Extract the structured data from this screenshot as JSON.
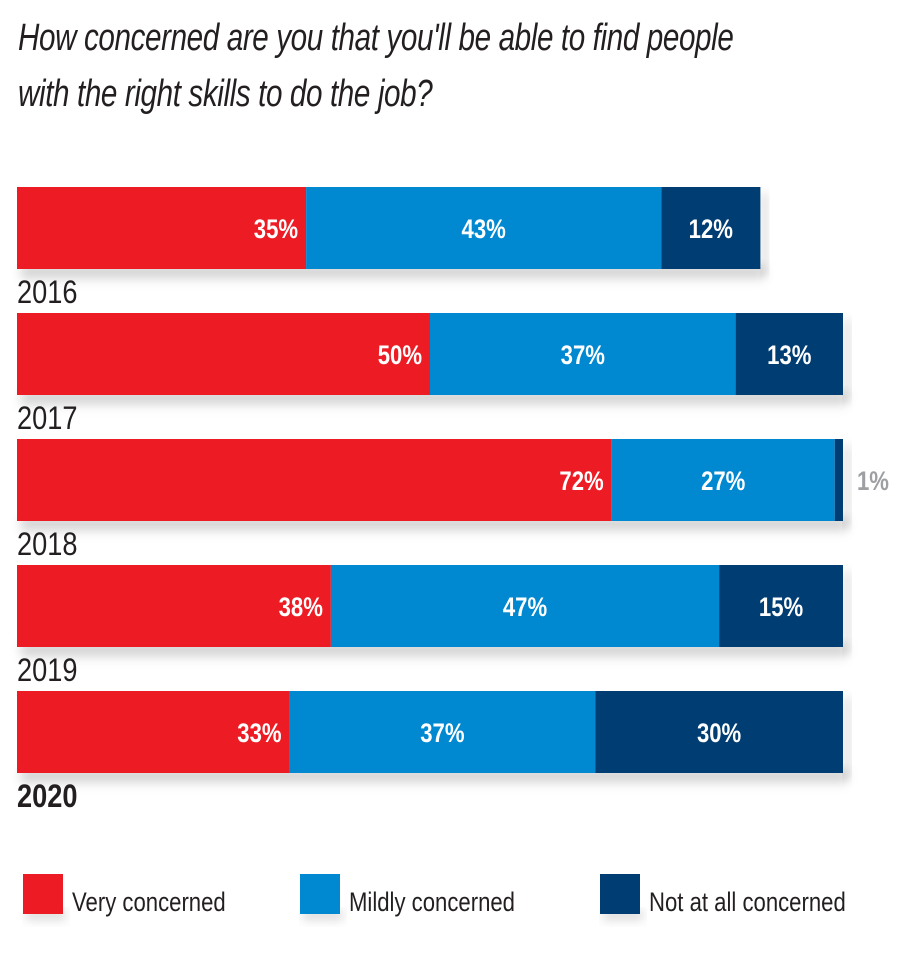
{
  "chart_data": {
    "type": "bar",
    "orientation": "horizontal",
    "stacked": true,
    "title": "How concerned are you that you'll be able to find people with the right skills to do the job?",
    "title_lines": [
      "How concerned are you that you'll be able to find people",
      "with the right skills to do the job?"
    ],
    "xlabel": "",
    "ylabel": "",
    "xlim": [
      0,
      100
    ],
    "grid": false,
    "categories": [
      "2016",
      "2017",
      "2018",
      "2019",
      "2020"
    ],
    "highlighted_category": "2020",
    "series": [
      {
        "name": "Very concerned",
        "color": "#ED1C24",
        "values": [
          35,
          50,
          72,
          38,
          33
        ],
        "labels": [
          "35%",
          "50%",
          "72%",
          "38%",
          "33%"
        ]
      },
      {
        "name": "Mildly concerned",
        "color": "#0088D1",
        "values": [
          43,
          37,
          27,
          47,
          37
        ],
        "labels": [
          "43%",
          "37%",
          "27%",
          "47%",
          "37%"
        ]
      },
      {
        "name": "Not at all concerned",
        "color": "#003D73",
        "values": [
          12,
          13,
          1,
          15,
          30
        ],
        "labels": [
          "12%",
          "13%",
          "1%",
          "15%",
          "30%"
        ]
      }
    ],
    "outside_label_color": "#9D9FA2",
    "legend": {
      "position": "bottom",
      "entries": [
        "Very concerned",
        "Mildly concerned",
        "Not at all concerned"
      ]
    }
  }
}
